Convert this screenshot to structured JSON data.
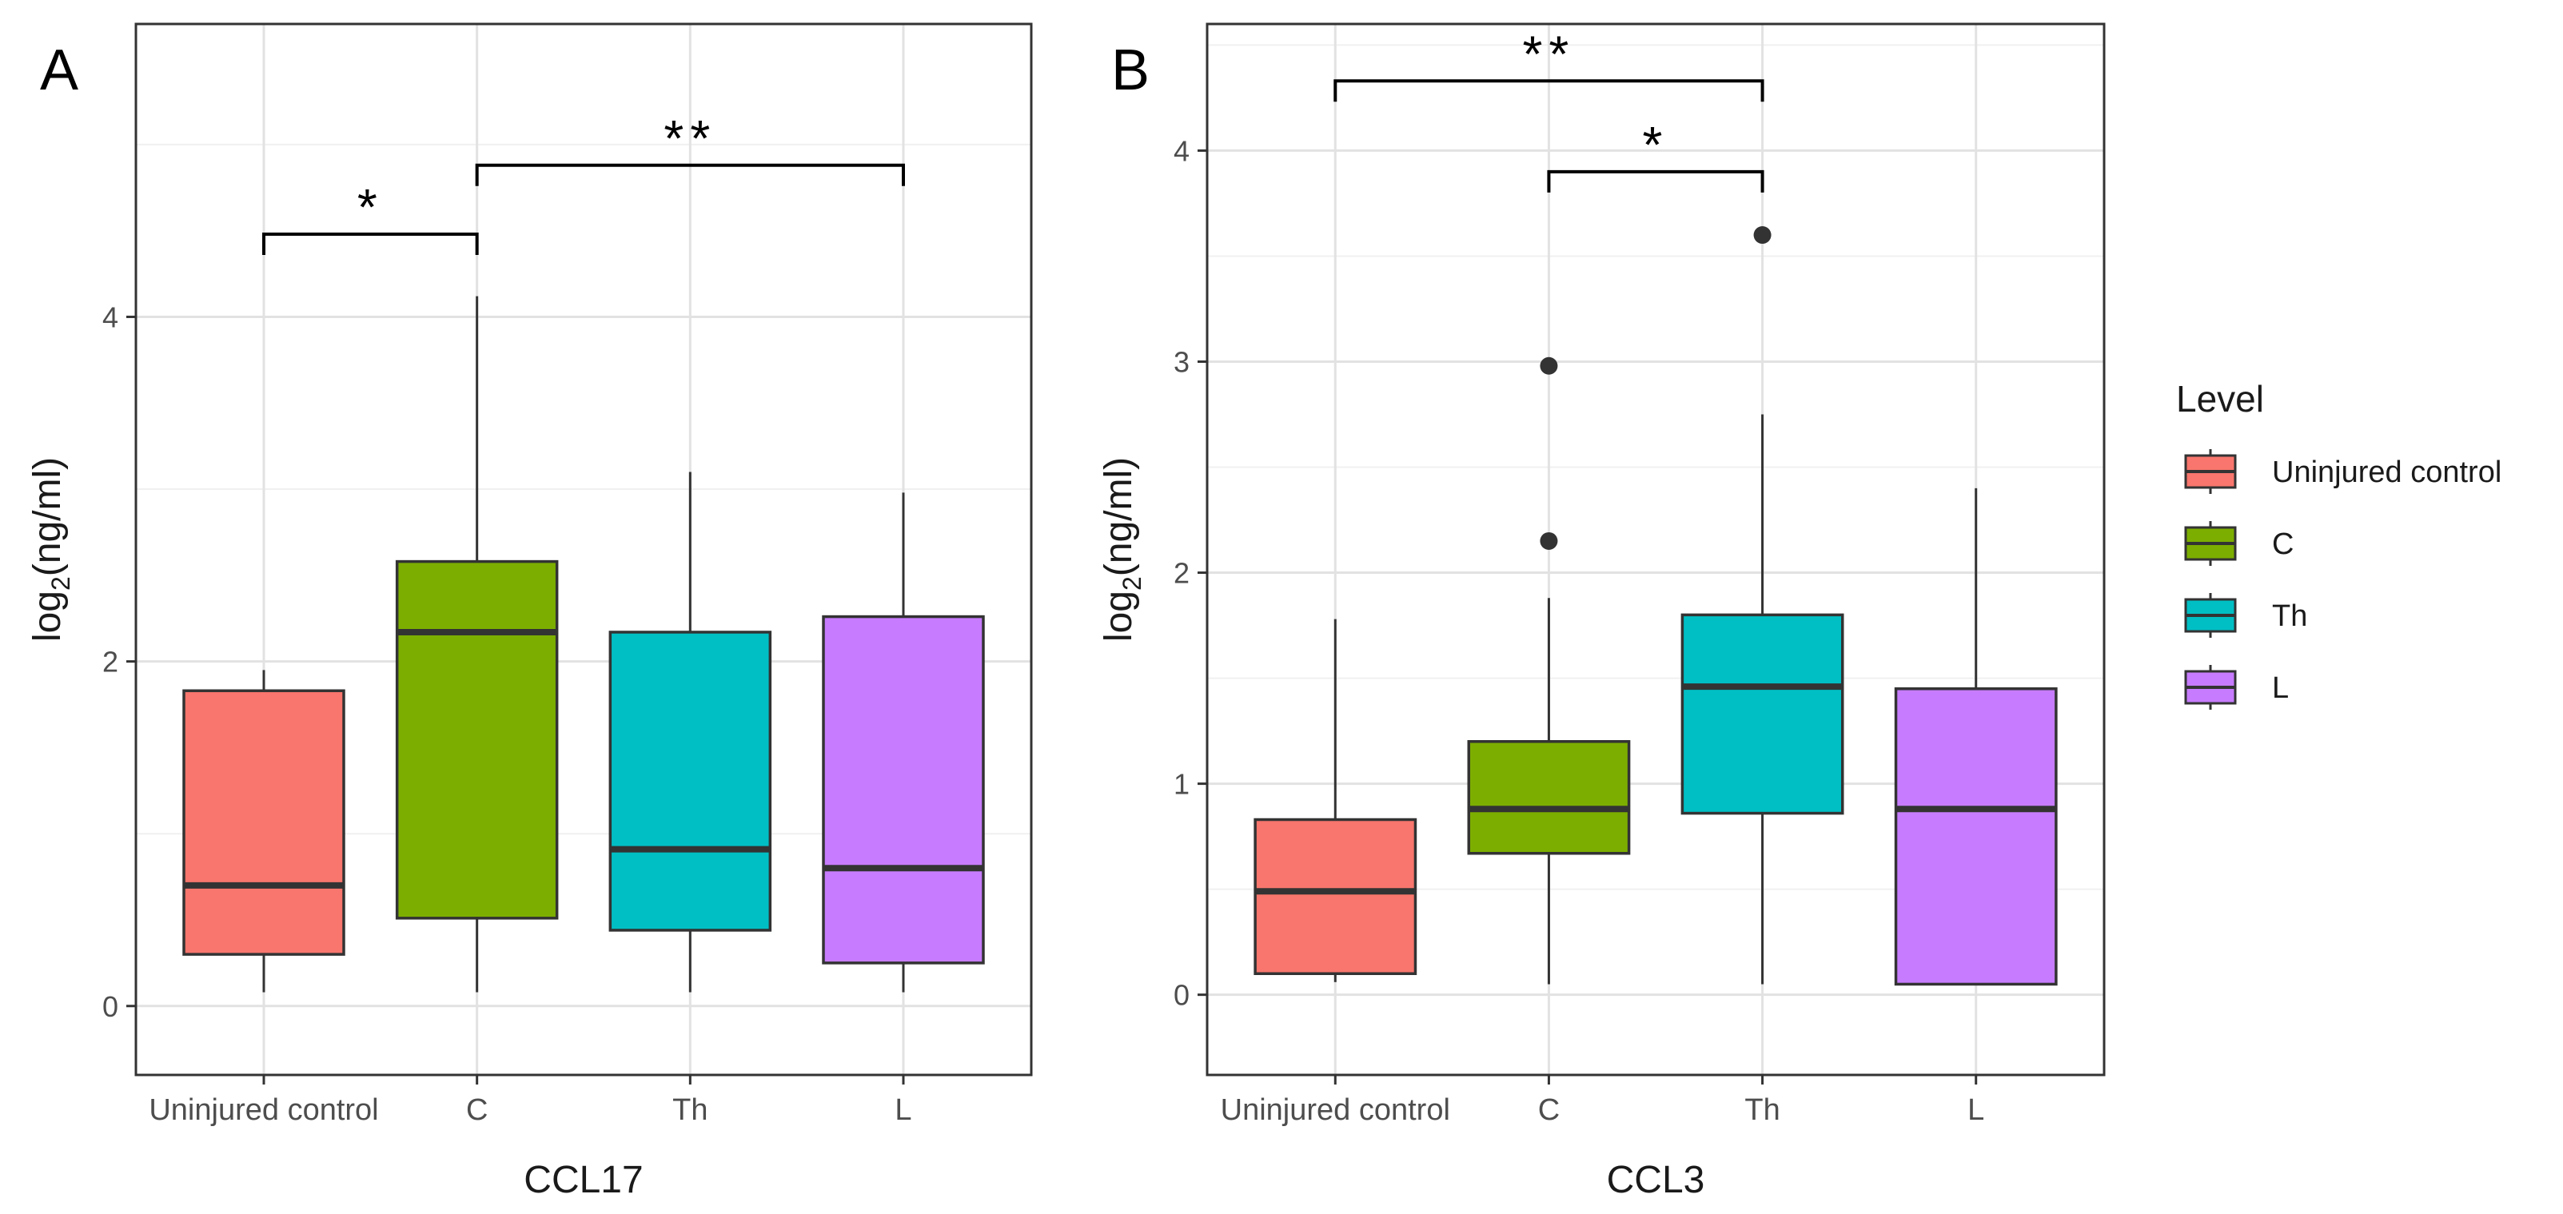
{
  "chart_data": [
    {
      "type": "box",
      "panel_label": "A",
      "xlabel": "CCL17",
      "ylabel_main": "log",
      "ylabel_sub": "2",
      "ylabel_rest": "(ng/ml)",
      "categories": [
        "Uninjured control",
        "C",
        "Th",
        "L"
      ],
      "ylim": [
        -0.4,
        5.7
      ],
      "yticks": [
        0,
        2,
        4
      ],
      "ytick_labels": [
        "0",
        "2",
        "4"
      ],
      "boxes": [
        {
          "name": "Uninjured control",
          "color": "#F8766D",
          "min": 0.08,
          "q1": 0.3,
          "median": 0.7,
          "q3": 1.83,
          "max": 1.95,
          "outliers": []
        },
        {
          "name": "C",
          "color": "#7CAE00",
          "min": 0.08,
          "q1": 0.51,
          "median": 2.17,
          "q3": 2.58,
          "max": 4.12,
          "outliers": []
        },
        {
          "name": "Th",
          "color": "#00BFC4",
          "min": 0.08,
          "q1": 0.44,
          "median": 0.91,
          "q3": 2.17,
          "max": 3.1,
          "outliers": []
        },
        {
          "name": "L",
          "color": "#C77CFF",
          "min": 0.08,
          "q1": 0.25,
          "median": 0.8,
          "q3": 2.26,
          "max": 2.98,
          "outliers": []
        }
      ],
      "brackets": [
        {
          "from": 0,
          "to": 1,
          "y": 4.48,
          "label": "*"
        },
        {
          "from": 1,
          "to": 3,
          "y": 4.88,
          "label": "**"
        }
      ]
    },
    {
      "type": "box",
      "panel_label": "B",
      "xlabel": "CCL3",
      "ylabel_main": "log",
      "ylabel_sub": "2",
      "ylabel_rest": "(ng/ml)",
      "categories": [
        "Uninjured control",
        "C",
        "Th",
        "L"
      ],
      "ylim": [
        -0.38,
        4.6
      ],
      "yticks": [
        0,
        1,
        2,
        3,
        4
      ],
      "ytick_labels": [
        "0",
        "1",
        "2",
        "3",
        "4"
      ],
      "boxes": [
        {
          "name": "Uninjured control",
          "color": "#F8766D",
          "min": 0.06,
          "q1": 0.1,
          "median": 0.49,
          "q3": 0.83,
          "max": 1.78,
          "outliers": []
        },
        {
          "name": "C",
          "color": "#7CAE00",
          "min": 0.05,
          "q1": 0.67,
          "median": 0.88,
          "q3": 1.2,
          "max": 1.88,
          "outliers": [
            2.15,
            2.98
          ]
        },
        {
          "name": "Th",
          "color": "#00BFC4",
          "min": 0.05,
          "q1": 0.86,
          "median": 1.46,
          "q3": 1.8,
          "max": 2.75,
          "outliers": [
            3.6
          ]
        },
        {
          "name": "L",
          "color": "#C77CFF",
          "min": 0.05,
          "q1": 0.05,
          "median": 0.88,
          "q3": 1.45,
          "max": 2.4,
          "outliers": []
        }
      ],
      "brackets": [
        {
          "from": 0,
          "to": 2,
          "y": 4.33,
          "label": "**"
        },
        {
          "from": 1,
          "to": 2,
          "y": 3.9,
          "label": "*"
        }
      ]
    }
  ],
  "legend": {
    "title": "Level",
    "items": [
      {
        "label": "Uninjured control",
        "color": "#F8766D"
      },
      {
        "label": "C",
        "color": "#7CAE00"
      },
      {
        "label": "Th",
        "color": "#00BFC4"
      },
      {
        "label": "L",
        "color": "#C77CFF"
      }
    ]
  }
}
